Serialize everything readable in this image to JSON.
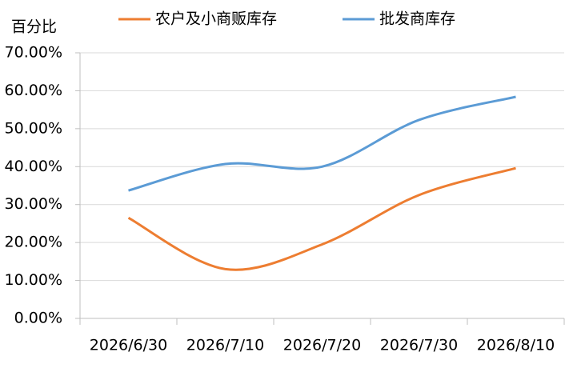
{
  "chart_data": {
    "type": "line",
    "y_axis_label": "百分比",
    "categories": [
      "2026/6/30",
      "2026/7/10",
      "2026/7/20",
      "2026/7/30",
      "2026/8/10"
    ],
    "series": [
      {
        "name": "农户及小商贩库存",
        "color": "#ed7d31",
        "values": [
          26.5,
          13.0,
          19.5,
          32.5,
          39.6
        ]
      },
      {
        "name": "批发商库存",
        "color": "#5b9bd5",
        "values": [
          33.7,
          40.7,
          40.0,
          52.3,
          58.4
        ]
      }
    ],
    "ylim": [
      0,
      70
    ],
    "yticks": [
      {
        "value": 0,
        "label": "0.00%"
      },
      {
        "value": 10,
        "label": "10.00%"
      },
      {
        "value": 20,
        "label": "20.00%"
      },
      {
        "value": 30,
        "label": "30.00%"
      },
      {
        "value": 40,
        "label": "40.00%"
      },
      {
        "value": 50,
        "label": "50.00%"
      },
      {
        "value": 60,
        "label": "60.00%"
      },
      {
        "value": 70,
        "label": "70.00%"
      }
    ],
    "grid": true,
    "smooth": true,
    "legend": "top"
  }
}
